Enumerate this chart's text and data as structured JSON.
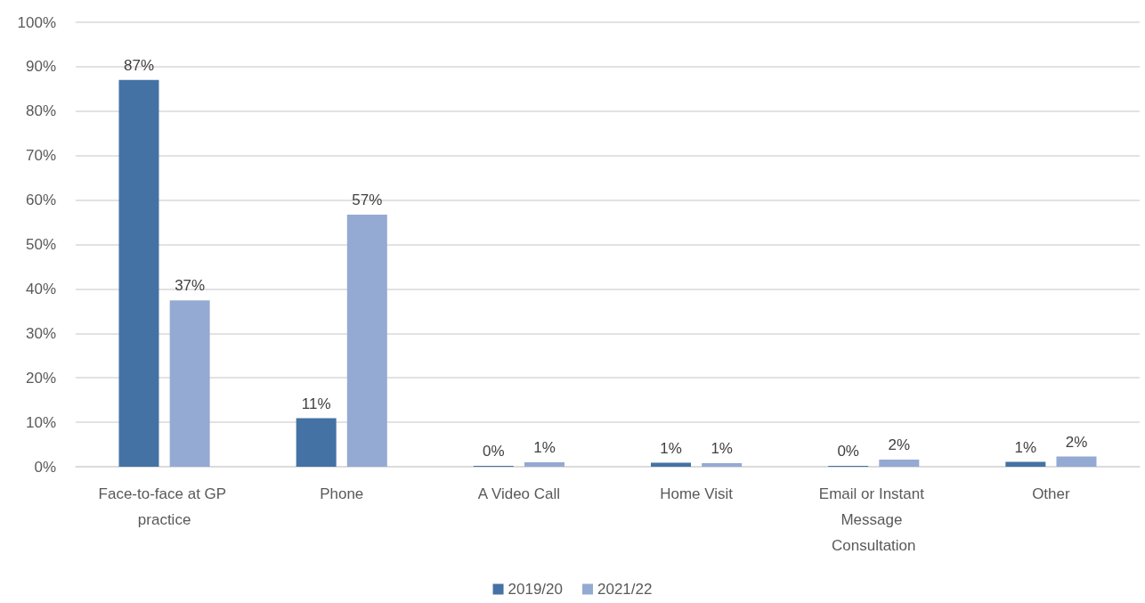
{
  "chart_data": {
    "type": "bar",
    "categories": [
      "Face-to-face at GP practice",
      "Phone",
      "A Video Call",
      "Home Visit",
      "Email or Instant Message Consultation",
      "Other"
    ],
    "series": [
      {
        "name": "2019/20",
        "color": "#4472a4",
        "values": [
          87.0,
          10.9,
          0.2,
          0.9,
          0.2,
          1.1
        ],
        "value_labels": [
          "87%",
          "11%",
          "0%",
          "1%",
          "0%",
          "1%"
        ]
      },
      {
        "name": "2021/22",
        "color": "#94aad2",
        "values": [
          37.4,
          56.7,
          1.0,
          0.8,
          1.6,
          2.3
        ],
        "value_labels": [
          "37%",
          "57%",
          "1%",
          "1%",
          "2%",
          "2%"
        ]
      }
    ],
    "ylim": [
      0,
      100
    ],
    "yticks": [
      {
        "value": 0,
        "label": "0%"
      },
      {
        "value": 10,
        "label": "10%"
      },
      {
        "value": 20,
        "label": "20%"
      },
      {
        "value": 30,
        "label": "30%"
      },
      {
        "value": 40,
        "label": "40%"
      },
      {
        "value": 50,
        "label": "50%"
      },
      {
        "value": 60,
        "label": "60%"
      },
      {
        "value": 70,
        "label": "70%"
      },
      {
        "value": 80,
        "label": "80%"
      },
      {
        "value": 90,
        "label": "90%"
      },
      {
        "value": 100,
        "label": "100%"
      }
    ],
    "grid": "y",
    "legend": "bottom"
  }
}
